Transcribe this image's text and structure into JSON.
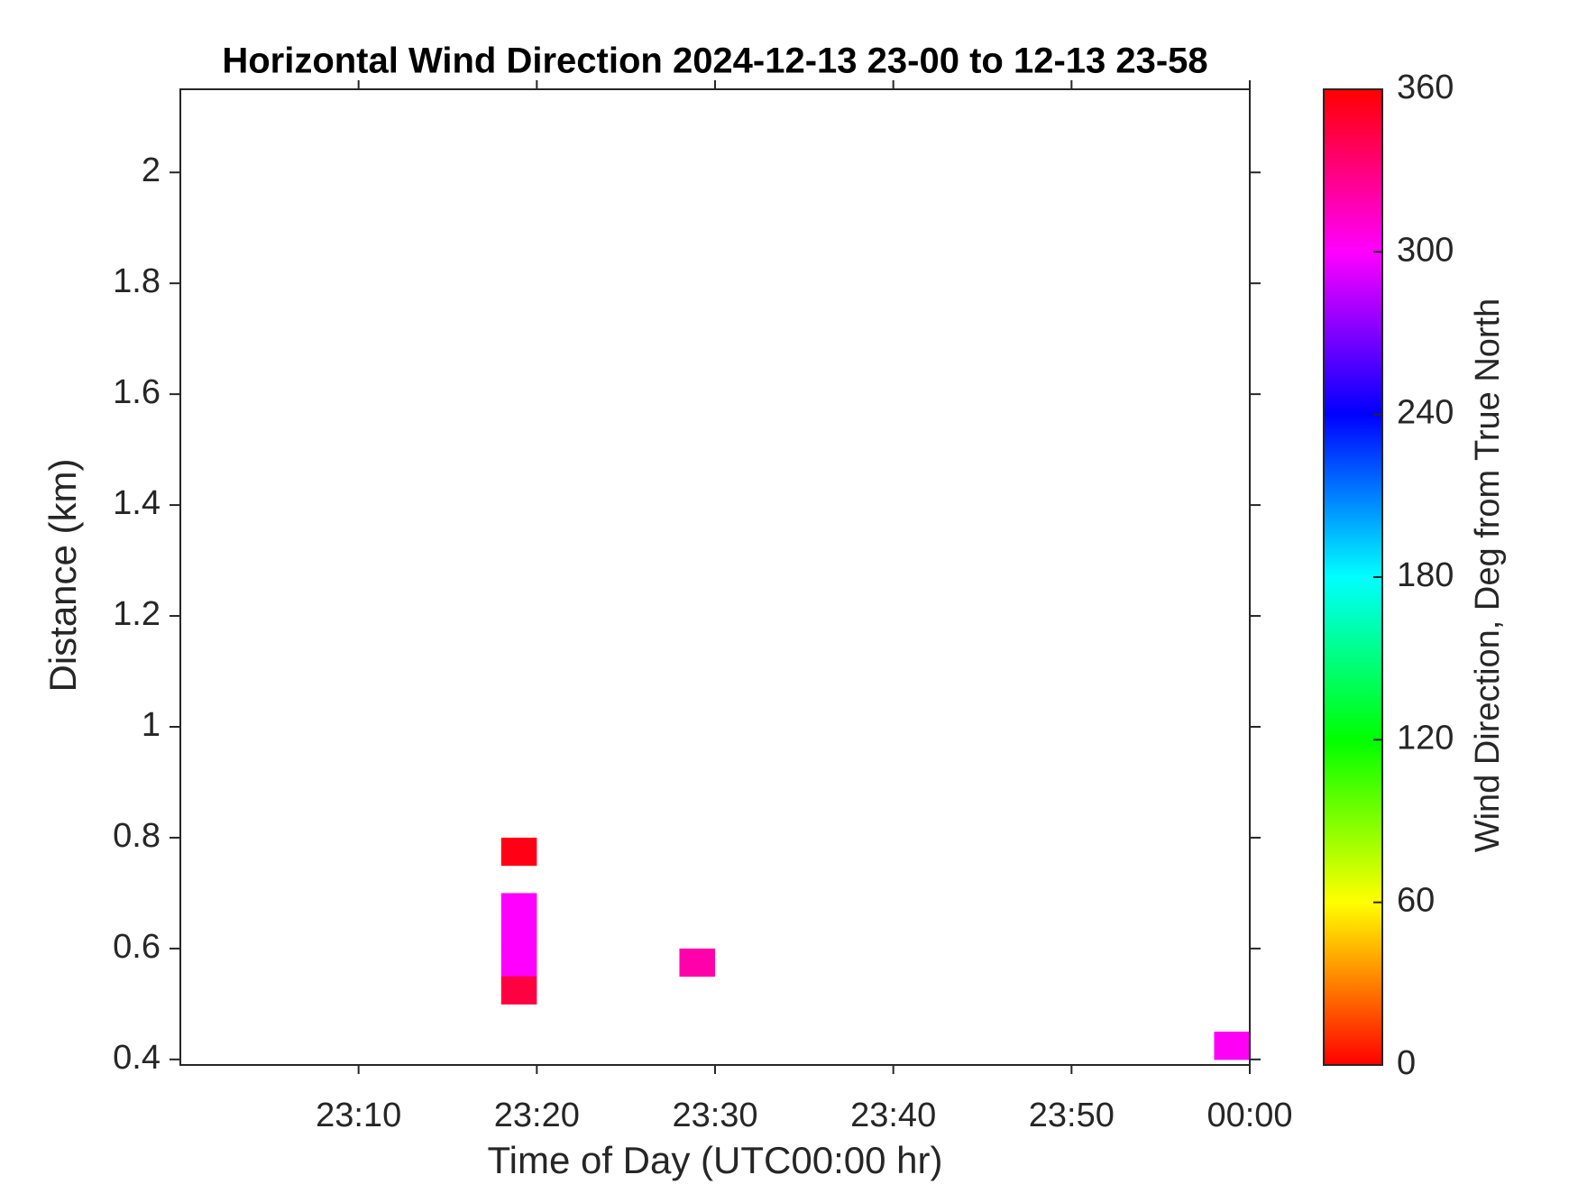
{
  "chart_data": {
    "type": "heatmap",
    "title": "Horizontal Wind Direction 2024-12-13 23-00 to 12-13 23-58",
    "x_label": "Time of Day (UTC00:00 hr)",
    "y_label": "Distance (km)",
    "colorbar_label": "Wind Direction, Deg from True North",
    "colormap": "hsv",
    "x": [
      19,
      19,
      19,
      19,
      19,
      29,
      59
    ],
    "y": [
      0.775,
      0.675,
      0.625,
      0.575,
      0.525,
      0.575,
      0.425
    ],
    "values": [
      355,
      300,
      300,
      300,
      345,
      320,
      302
    ],
    "xlim": [
      0,
      60
    ],
    "xticks": [
      {
        "value": 10,
        "label": "23:10"
      },
      {
        "value": 20,
        "label": "23:20"
      },
      {
        "value": 30,
        "label": "23:30"
      },
      {
        "value": 40,
        "label": "23:40"
      },
      {
        "value": 50,
        "label": "23:50"
      },
      {
        "value": 60,
        "label": "00:00"
      }
    ],
    "ylim": [
      0.39,
      2.15
    ],
    "yticks": [
      0.4,
      0.6,
      0.8,
      1,
      1.2,
      1.4,
      1.6,
      1.8,
      2
    ],
    "clim": [
      0,
      360
    ],
    "cticks": [
      0,
      60,
      120,
      180,
      240,
      300,
      360
    ],
    "grid": false
  }
}
